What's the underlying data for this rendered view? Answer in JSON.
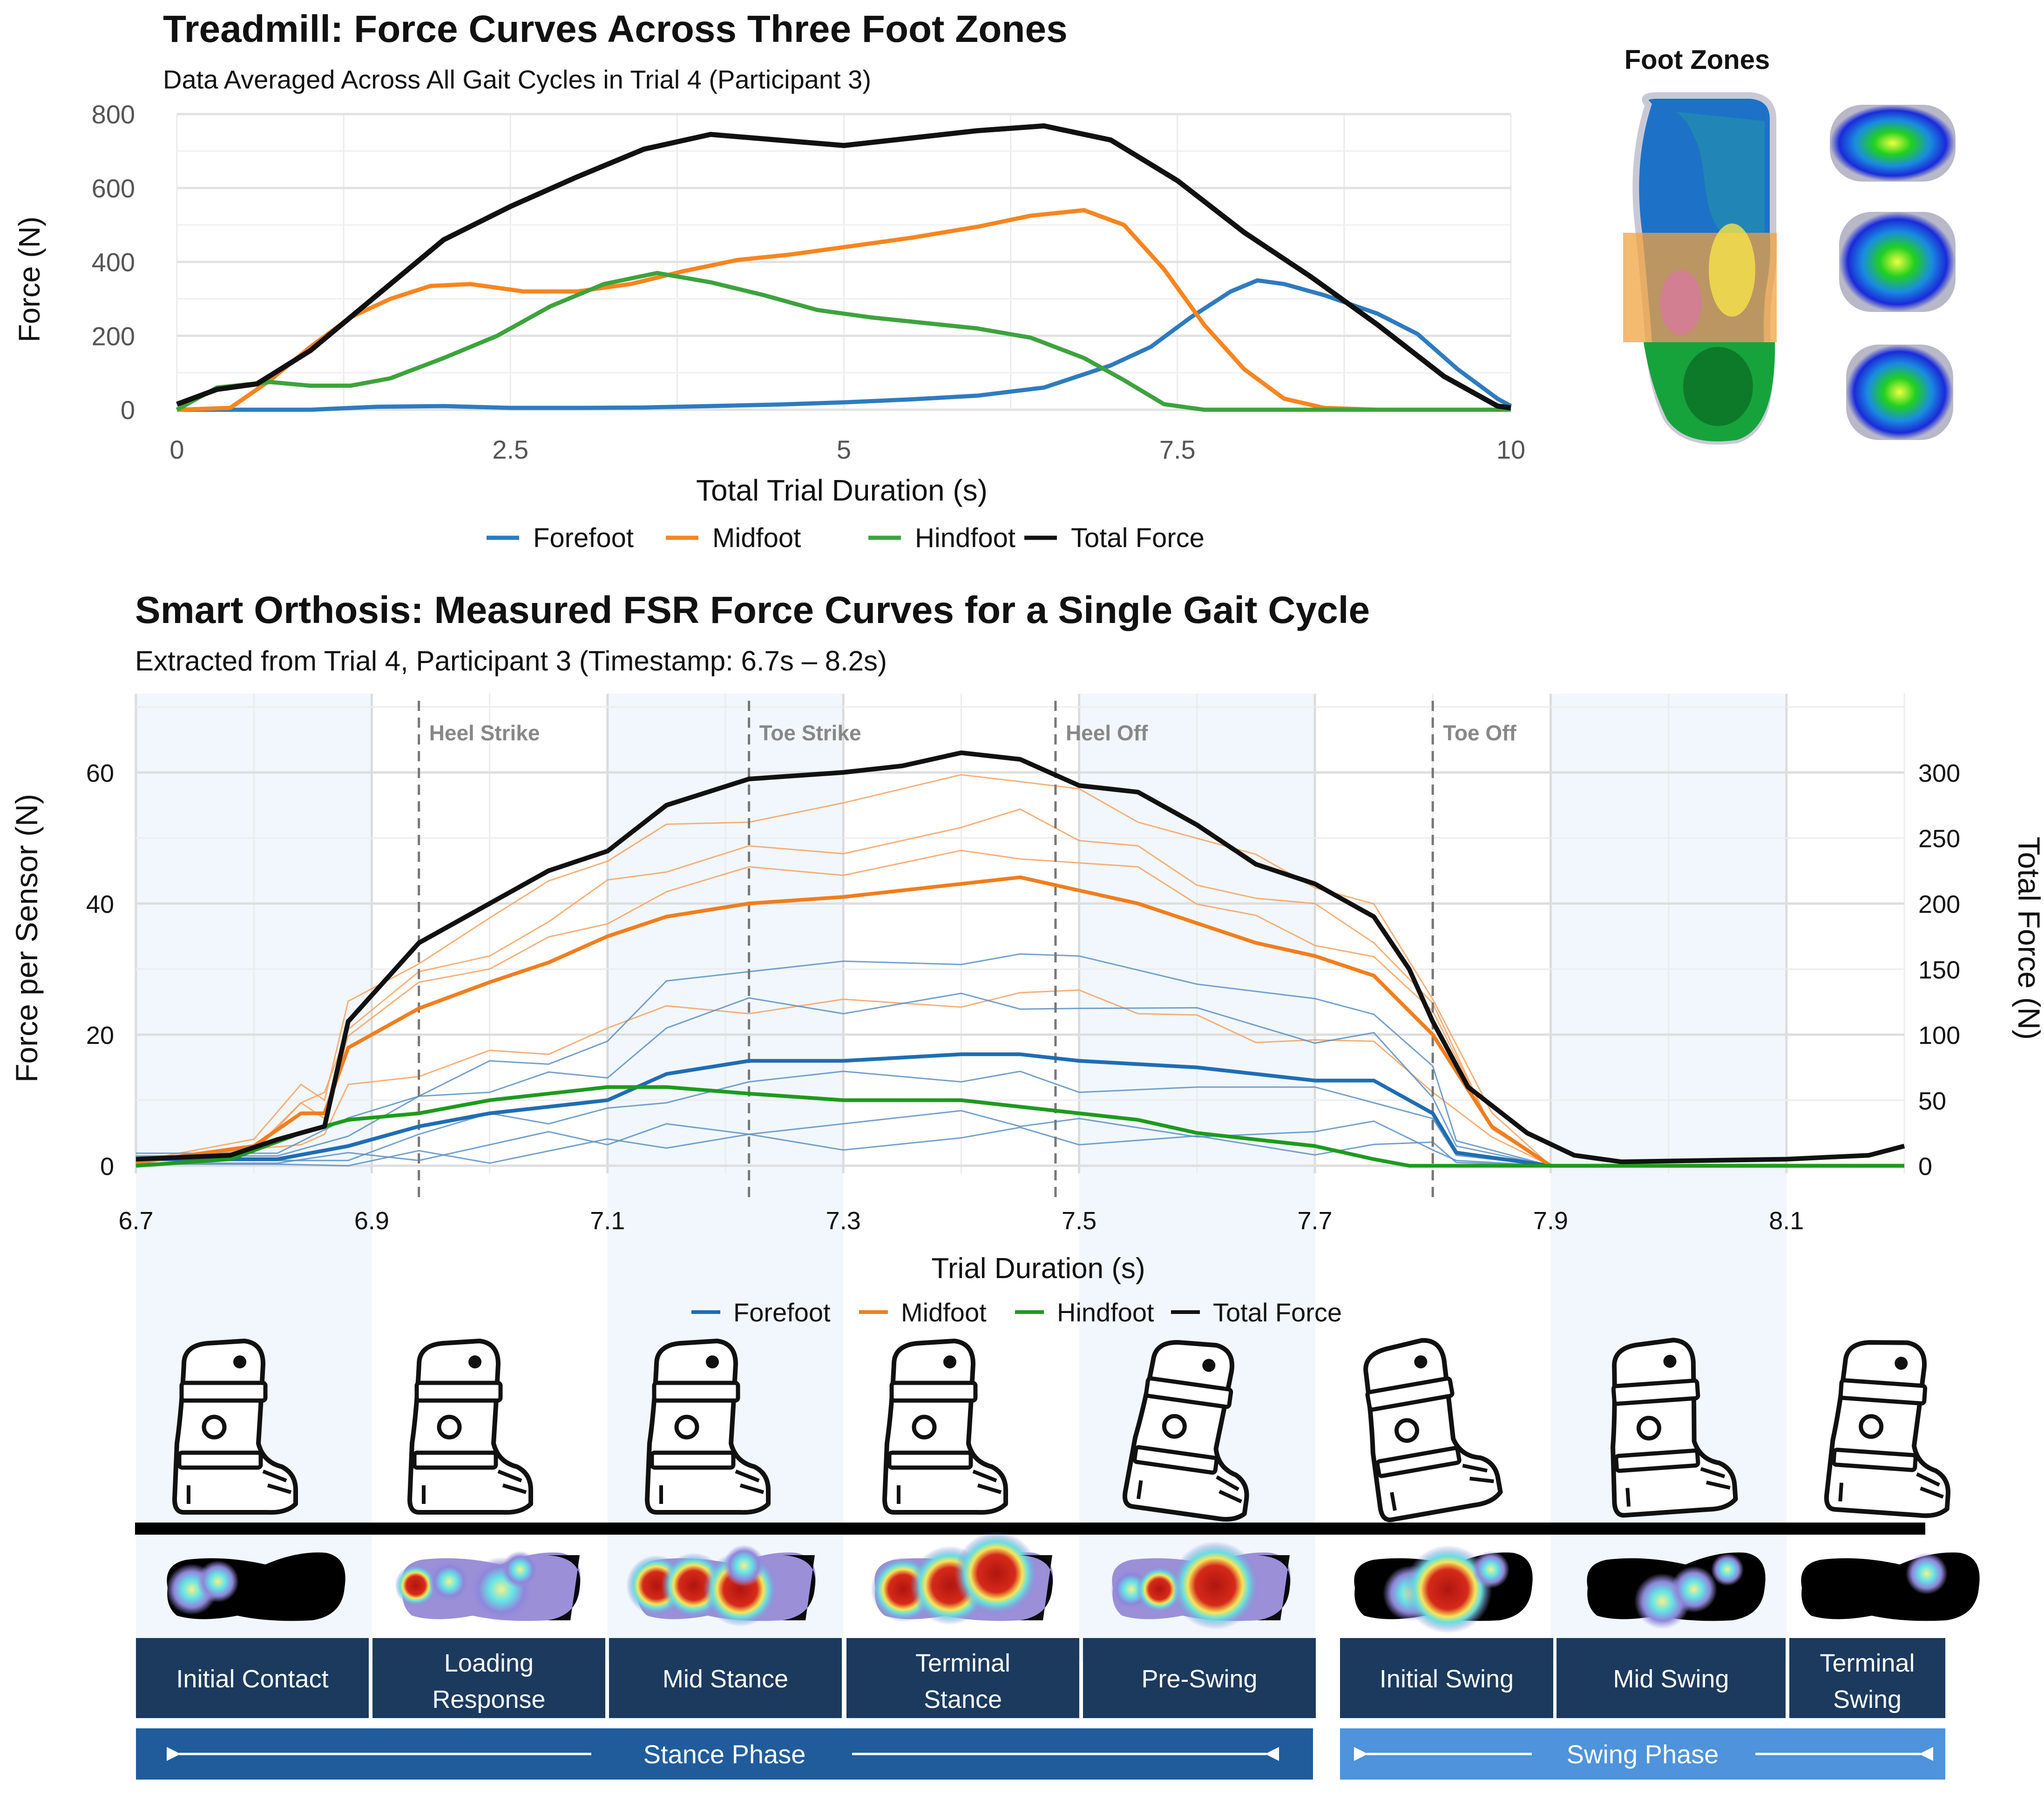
{
  "chart_data": [
    {
      "type": "line",
      "title": "Treadmill: Force Curves Across Three Foot Zones",
      "subtitle": "Data Averaged Across All Gait Cycles in Trial 4 (Participant 3)",
      "xlabel": "Total Trial Duration (s)",
      "ylabel": "Force (N)",
      "xlim": [
        0,
        10
      ],
      "ylim": [
        0,
        800
      ],
      "x_ticks": [
        "0",
        "2.5",
        "5",
        "7.5",
        "10"
      ],
      "y_ticks": [
        "0",
        "200",
        "400",
        "600",
        "800"
      ],
      "grid": true,
      "legend": "bottom",
      "series": [
        {
          "name": "Forefoot",
          "color": "#2E7BBF",
          "points": [
            [
              0,
              0
            ],
            [
              1,
              0
            ],
            [
              1.5,
              8
            ],
            [
              2,
              10
            ],
            [
              2.5,
              5
            ],
            [
              3,
              5
            ],
            [
              3.5,
              6
            ],
            [
              4,
              10
            ],
            [
              4.5,
              14
            ],
            [
              5,
              20
            ],
            [
              5.5,
              28
            ],
            [
              6,
              38
            ],
            [
              6.5,
              60
            ],
            [
              7,
              120
            ],
            [
              7.3,
              170
            ],
            [
              7.6,
              250
            ],
            [
              7.9,
              320
            ],
            [
              8.1,
              350
            ],
            [
              8.3,
              340
            ],
            [
              8.6,
              310
            ],
            [
              9,
              260
            ],
            [
              9.3,
              205
            ],
            [
              9.6,
              110
            ],
            [
              9.9,
              30
            ],
            [
              10,
              10
            ]
          ]
        },
        {
          "name": "Midfoot",
          "color": "#F7851F",
          "points": [
            [
              0,
              0
            ],
            [
              0.4,
              5
            ],
            [
              0.7,
              80
            ],
            [
              1,
              170
            ],
            [
              1.3,
              250
            ],
            [
              1.6,
              300
            ],
            [
              1.9,
              335
            ],
            [
              2.2,
              340
            ],
            [
              2.6,
              320
            ],
            [
              3,
              320
            ],
            [
              3.4,
              340
            ],
            [
              3.8,
              375
            ],
            [
              4.2,
              405
            ],
            [
              4.6,
              420
            ],
            [
              5,
              440
            ],
            [
              5.5,
              465
            ],
            [
              6,
              495
            ],
            [
              6.4,
              525
            ],
            [
              6.8,
              540
            ],
            [
              7.1,
              500
            ],
            [
              7.4,
              380
            ],
            [
              7.7,
              230
            ],
            [
              8,
              110
            ],
            [
              8.3,
              30
            ],
            [
              8.6,
              5
            ],
            [
              9,
              0
            ],
            [
              10,
              0
            ]
          ]
        },
        {
          "name": "Hindfoot",
          "color": "#3DA33D",
          "points": [
            [
              0,
              0
            ],
            [
              0.3,
              60
            ],
            [
              0.7,
              75
            ],
            [
              1,
              65
            ],
            [
              1.3,
              65
            ],
            [
              1.6,
              85
            ],
            [
              2,
              140
            ],
            [
              2.4,
              200
            ],
            [
              2.8,
              280
            ],
            [
              3.2,
              340
            ],
            [
              3.6,
              370
            ],
            [
              4,
              345
            ],
            [
              4.4,
              310
            ],
            [
              4.8,
              270
            ],
            [
              5.2,
              250
            ],
            [
              5.6,
              235
            ],
            [
              6,
              220
            ],
            [
              6.4,
              195
            ],
            [
              6.8,
              140
            ],
            [
              7.1,
              80
            ],
            [
              7.4,
              15
            ],
            [
              7.7,
              0
            ],
            [
              10,
              0
            ]
          ]
        },
        {
          "name": "Total Force",
          "color": "#111111",
          "points": [
            [
              0,
              15
            ],
            [
              0.3,
              55
            ],
            [
              0.6,
              70
            ],
            [
              1,
              160
            ],
            [
              1.5,
              310
            ],
            [
              2,
              460
            ],
            [
              2.5,
              550
            ],
            [
              3,
              630
            ],
            [
              3.5,
              705
            ],
            [
              4,
              745
            ],
            [
              4.5,
              730
            ],
            [
              5,
              715
            ],
            [
              5.5,
              735
            ],
            [
              6,
              755
            ],
            [
              6.5,
              768
            ],
            [
              7,
              730
            ],
            [
              7.5,
              620
            ],
            [
              8,
              480
            ],
            [
              8.5,
              360
            ],
            [
              9,
              230
            ],
            [
              9.5,
              90
            ],
            [
              9.9,
              10
            ],
            [
              10,
              5
            ]
          ]
        }
      ]
    },
    {
      "type": "line",
      "title": "Smart Orthosis: Measured FSR Force Curves for a Single Gait Cycle",
      "subtitle": "Extracted from Trial 4, Participant 3 (Timestamp: 6.7s – 8.2s)",
      "xlabel": "Trial Duration (s)",
      "ylabel": "Force per Sensor (N)",
      "y2label": "Total Force (N)",
      "xlim": [
        6.7,
        8.2
      ],
      "ylim": [
        -4,
        72
      ],
      "y2lim": [
        -20,
        360
      ],
      "x_ticks": [
        "6.7",
        "6.9",
        "7.1",
        "7.3",
        "7.5",
        "7.7",
        "7.9",
        "8.1"
      ],
      "y_ticks": [
        "0",
        "20",
        "40",
        "60"
      ],
      "y2_ticks": [
        "0",
        "50",
        "100",
        "150",
        "200",
        "250",
        "300"
      ],
      "grid": true,
      "legend": "bottom",
      "events": [
        {
          "label": "Heel Strike",
          "x": 6.94
        },
        {
          "label": "Toe Strike",
          "x": 7.22
        },
        {
          "label": "Heel Off",
          "x": 7.48
        },
        {
          "label": "Toe Off",
          "x": 7.8
        }
      ],
      "shaded_bands": [
        [
          6.7,
          6.9
        ],
        [
          7.1,
          7.3
        ],
        [
          7.5,
          7.7
        ],
        [
          7.9,
          8.1
        ]
      ],
      "series": [
        {
          "name": "Forefoot",
          "color": "#1F6DB3",
          "points": [
            [
              6.7,
              1
            ],
            [
              6.82,
              1
            ],
            [
              6.88,
              3
            ],
            [
              6.94,
              6
            ],
            [
              7.0,
              8
            ],
            [
              7.05,
              9
            ],
            [
              7.1,
              10
            ],
            [
              7.15,
              14
            ],
            [
              7.22,
              16
            ],
            [
              7.3,
              16
            ],
            [
              7.4,
              17
            ],
            [
              7.45,
              17
            ],
            [
              7.5,
              16
            ],
            [
              7.6,
              15
            ],
            [
              7.7,
              13
            ],
            [
              7.75,
              13
            ],
            [
              7.8,
              8
            ],
            [
              7.82,
              2
            ],
            [
              7.9,
              0
            ],
            [
              8.2,
              0
            ]
          ]
        },
        {
          "name": "Midfoot",
          "color": "#F07E1F",
          "points": [
            [
              6.7,
              0.5
            ],
            [
              6.8,
              3
            ],
            [
              6.84,
              8
            ],
            [
              6.86,
              8
            ],
            [
              6.88,
              18
            ],
            [
              6.94,
              24
            ],
            [
              7.0,
              28
            ],
            [
              7.05,
              31
            ],
            [
              7.1,
              35
            ],
            [
              7.15,
              38
            ],
            [
              7.22,
              40
            ],
            [
              7.3,
              41
            ],
            [
              7.4,
              43
            ],
            [
              7.45,
              44
            ],
            [
              7.5,
              42
            ],
            [
              7.55,
              40
            ],
            [
              7.6,
              37
            ],
            [
              7.65,
              34
            ],
            [
              7.7,
              32
            ],
            [
              7.75,
              29
            ],
            [
              7.8,
              20
            ],
            [
              7.85,
              6
            ],
            [
              7.9,
              0
            ],
            [
              8.2,
              0
            ]
          ]
        },
        {
          "name": "Hindfoot",
          "color": "#1E9A1E",
          "points": [
            [
              6.7,
              0
            ],
            [
              6.78,
              1
            ],
            [
              6.84,
              5
            ],
            [
              6.88,
              7
            ],
            [
              6.94,
              8
            ],
            [
              7.0,
              10
            ],
            [
              7.05,
              11
            ],
            [
              7.1,
              12
            ],
            [
              7.15,
              12
            ],
            [
              7.22,
              11
            ],
            [
              7.3,
              10
            ],
            [
              7.4,
              10
            ],
            [
              7.45,
              9
            ],
            [
              7.5,
              8
            ],
            [
              7.55,
              7
            ],
            [
              7.6,
              5
            ],
            [
              7.65,
              4
            ],
            [
              7.7,
              3
            ],
            [
              7.75,
              1
            ],
            [
              7.78,
              0
            ],
            [
              8.2,
              0
            ]
          ]
        },
        {
          "name": "Total Force",
          "color": "#111111",
          "points": [
            [
              6.7,
              5
            ],
            [
              6.78,
              8
            ],
            [
              6.82,
              20
            ],
            [
              6.86,
              30
            ],
            [
              6.88,
              110
            ],
            [
              6.94,
              170
            ],
            [
              7.0,
              200
            ],
            [
              7.05,
              225
            ],
            [
              7.1,
              240
            ],
            [
              7.15,
              275
            ],
            [
              7.22,
              295
            ],
            [
              7.3,
              300
            ],
            [
              7.35,
              305
            ],
            [
              7.4,
              315
            ],
            [
              7.45,
              310
            ],
            [
              7.5,
              290
            ],
            [
              7.55,
              285
            ],
            [
              7.6,
              260
            ],
            [
              7.65,
              230
            ],
            [
              7.7,
              215
            ],
            [
              7.75,
              190
            ],
            [
              7.78,
              150
            ],
            [
              7.8,
              110
            ],
            [
              7.83,
              60
            ],
            [
              7.88,
              25
            ],
            [
              7.92,
              8
            ],
            [
              7.96,
              3
            ],
            [
              8.1,
              5
            ],
            [
              8.17,
              8
            ],
            [
              8.2,
              15
            ]
          ]
        }
      ]
    }
  ],
  "foot_zones": {
    "title": "Foot Zones"
  },
  "phase_labels": {
    "stance": [
      "Initial Contact",
      "Loading Response",
      "Mid Stance",
      "Terminal Stance",
      "Pre-Swing"
    ],
    "swing": [
      "Initial Swing",
      "Mid Swing",
      "Terminal Swing"
    ],
    "stance_phase": "Stance Phase",
    "swing_phase": "Swing Phase"
  },
  "colors": {
    "phase_box": "#1B3A5E",
    "stance_bar": "#205C9C",
    "swing_bar": "#4E93DB"
  }
}
